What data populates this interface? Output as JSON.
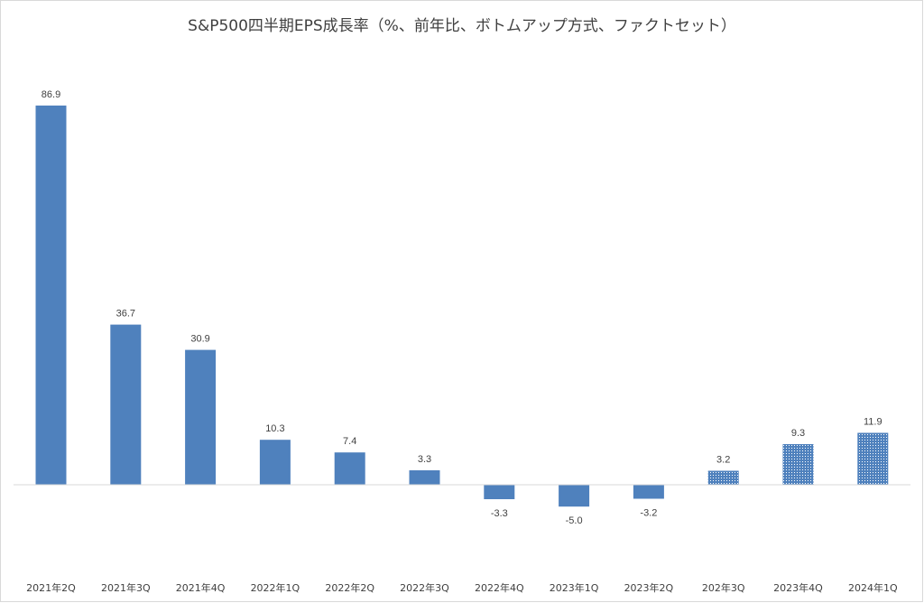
{
  "chart_data": {
    "type": "bar",
    "title": "S&P500四半期EPS成長率（%、前年比、ボトムアップ方式、ファクトセット）",
    "categories": [
      "2021年2Q",
      "2021年3Q",
      "2021年4Q",
      "2022年1Q",
      "2022年2Q",
      "2022年3Q",
      "2022年4Q",
      "2023年1Q",
      "2023年2Q",
      "202年3Q",
      "2023年4Q",
      "2024年1Q"
    ],
    "values": [
      86.9,
      36.7,
      30.9,
      10.3,
      7.4,
      3.3,
      -3.3,
      -5.0,
      -3.2,
      3.2,
      9.3,
      11.9
    ],
    "value_labels": [
      "86.9",
      "36.7",
      "30.9",
      "10.3",
      "7.4",
      "3.3",
      "-3.3",
      "-5.0",
      "-3.2",
      "3.2",
      "9.3",
      "11.9"
    ],
    "estimated": [
      false,
      false,
      false,
      false,
      false,
      false,
      false,
      false,
      false,
      true,
      true,
      true
    ],
    "ylim": [
      -20,
      100
    ],
    "xlabel": "",
    "ylabel": "",
    "grid": false,
    "legend": "none",
    "colors": {
      "bar": "#4f81bd",
      "pattern_bg": "#ffffff",
      "axis": "#d9d9d9",
      "text": "#404040"
    }
  }
}
